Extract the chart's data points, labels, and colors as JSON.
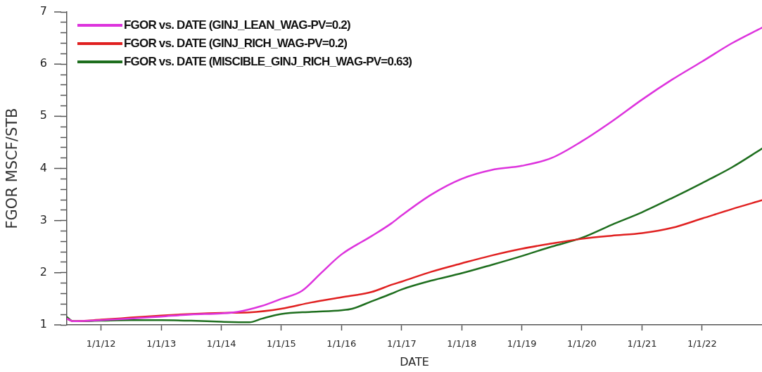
{
  "chart_data": {
    "type": "line",
    "xlabel": "DATE",
    "ylabel": "FGOR MSCF/STB",
    "xlim": [
      "2011-06-07",
      "2022-12-31"
    ],
    "ylim": [
      1,
      7
    ],
    "xticks": [
      {
        "value": "2012-01-01",
        "label": "1/1/12"
      },
      {
        "value": "2013-01-01",
        "label": "1/1/13"
      },
      {
        "value": "2014-01-01",
        "label": "1/1/14"
      },
      {
        "value": "2015-01-01",
        "label": "1/1/15"
      },
      {
        "value": "2016-01-01",
        "label": "1/1/16"
      },
      {
        "value": "2017-01-01",
        "label": "1/1/17"
      },
      {
        "value": "2018-01-01",
        "label": "1/1/18"
      },
      {
        "value": "2019-01-01",
        "label": "1/1/19"
      },
      {
        "value": "2020-01-01",
        "label": "1/1/20"
      },
      {
        "value": "2021-01-01",
        "label": "1/1/21"
      },
      {
        "value": "2022-01-01",
        "label": "1/1/22"
      }
    ],
    "yticks": [
      1,
      {
        "value": 1.2,
        "label": null
      },
      {
        "value": 1.4,
        "label": null
      },
      {
        "value": 1.6,
        "label": null
      },
      {
        "value": 1.8,
        "label": null
      },
      2,
      {
        "value": 2.2,
        "label": null
      },
      {
        "value": 2.4,
        "label": null
      },
      {
        "value": 2.6,
        "label": null
      },
      {
        "value": 2.8,
        "label": null
      },
      3,
      {
        "value": 3.2,
        "label": null
      },
      {
        "value": 3.4,
        "label": null
      },
      {
        "value": 3.6,
        "label": null
      },
      {
        "value": 3.8,
        "label": null
      },
      4,
      {
        "value": 4.2,
        "label": null
      },
      {
        "value": 4.4,
        "label": null
      },
      {
        "value": 4.6,
        "label": null
      },
      {
        "value": 4.8,
        "label": null
      },
      5,
      {
        "value": 5.2,
        "label": null
      },
      {
        "value": 5.4,
        "label": null
      },
      {
        "value": 5.6,
        "label": null
      },
      {
        "value": 5.8,
        "label": null
      },
      6,
      {
        "value": 6.2,
        "label": null
      },
      {
        "value": 6.4,
        "label": null
      },
      {
        "value": 6.6,
        "label": null
      },
      {
        "value": 6.8,
        "label": null
      },
      7
    ],
    "legend": "top left",
    "marker": "none",
    "line_style": "solid",
    "series": [
      {
        "name": "FGOR vs. DATE (GINJ_LEAN_WAG-PV=0.2)",
        "color": "#dd33dd",
        "x": [
          "2011-06-07",
          "2011-07-15",
          "2012-01-01",
          "2012-07-01",
          "2013-01-01",
          "2013-07-01",
          "2014-01-01",
          "2014-04-10",
          "2014-09-01",
          "2015-01-01",
          "2015-05-05",
          "2015-09-01",
          "2016-01-01",
          "2016-07-01",
          "2016-11-01",
          "2017-01-01",
          "2017-07-01",
          "2018-01-01",
          "2018-07-01",
          "2019-01-01",
          "2019-07-01",
          "2020-01-01",
          "2020-07-01",
          "2021-01-01",
          "2021-07-01",
          "2022-01-01",
          "2022-07-01",
          "2022-12-31"
        ],
        "values": [
          1.12,
          1.07,
          1.09,
          1.12,
          1.16,
          1.2,
          1.22,
          1.25,
          1.36,
          1.5,
          1.65,
          2.0,
          2.35,
          2.7,
          2.95,
          3.1,
          3.5,
          3.8,
          3.97,
          4.05,
          4.2,
          4.52,
          4.9,
          5.32,
          5.7,
          6.05,
          6.4,
          6.7
        ]
      },
      {
        "name": "FGOR vs. DATE (GINJ_RICH_WAG-PV=0.2)",
        "color": "#e02020",
        "x": [
          "2011-06-07",
          "2011-07-15",
          "2012-01-01",
          "2012-07-01",
          "2013-01-01",
          "2013-07-01",
          "2014-01-01",
          "2014-06-20",
          "2015-01-01",
          "2015-07-01",
          "2016-01-01",
          "2016-07-01",
          "2016-11-01",
          "2017-01-01",
          "2017-07-01",
          "2018-01-01",
          "2018-07-01",
          "2019-01-01",
          "2019-07-01",
          "2020-01-01",
          "2020-07-01",
          "2021-01-01",
          "2021-07-01",
          "2022-01-01",
          "2022-07-01",
          "2022-12-31"
        ],
        "values": [
          1.12,
          1.07,
          1.1,
          1.14,
          1.18,
          1.21,
          1.23,
          1.24,
          1.31,
          1.43,
          1.53,
          1.63,
          1.77,
          1.83,
          2.02,
          2.18,
          2.33,
          2.46,
          2.56,
          2.65,
          2.71,
          2.76,
          2.86,
          3.04,
          3.22,
          3.39
        ]
      },
      {
        "name": "FGOR vs. DATE (MISCIBLE_GINJ_RICH_WAG-PV=0.63)",
        "color": "#1e6e1e",
        "x": [
          "2011-06-07",
          "2011-07-15",
          "2012-01-01",
          "2012-07-01",
          "2013-01-01",
          "2013-07-01",
          "2014-01-01",
          "2014-06-20",
          "2014-09-05",
          "2015-01-01",
          "2015-07-01",
          "2016-01-01",
          "2016-03-07",
          "2016-07-01",
          "2016-11-01",
          "2017-01-01",
          "2017-07-01",
          "2018-01-01",
          "2018-07-01",
          "2019-01-01",
          "2019-07-01",
          "2020-01-01",
          "2020-07-01",
          "2021-01-01",
          "2021-07-01",
          "2022-01-01",
          "2022-07-01",
          "2022-12-31"
        ],
        "values": [
          1.15,
          1.07,
          1.08,
          1.09,
          1.09,
          1.08,
          1.06,
          1.05,
          1.12,
          1.21,
          1.25,
          1.28,
          1.31,
          1.45,
          1.6,
          1.68,
          1.85,
          1.99,
          2.15,
          2.32,
          2.5,
          2.67,
          2.92,
          3.16,
          3.43,
          3.72,
          4.02,
          4.38
        ]
      }
    ]
  }
}
